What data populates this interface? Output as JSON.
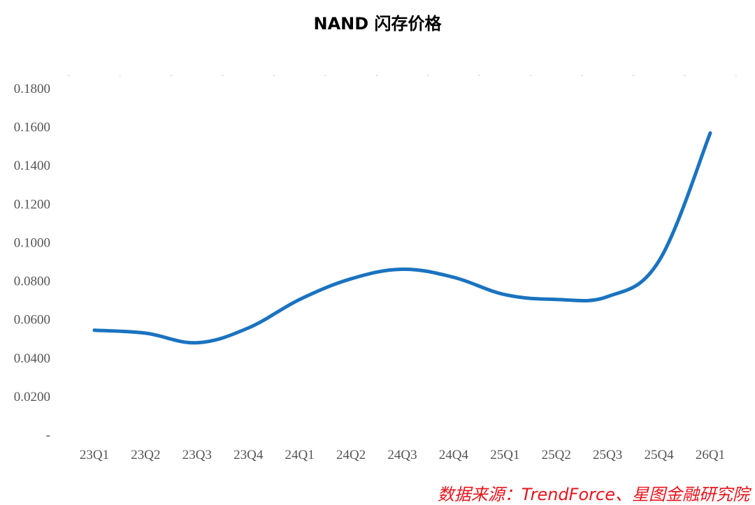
{
  "chart_data": {
    "type": "line",
    "title": "NAND 闪存价格",
    "categories": [
      "23Q1",
      "23Q2",
      "23Q3",
      "23Q4",
      "24Q1",
      "24Q2",
      "24Q3",
      "24Q4",
      "25Q1",
      "25Q2",
      "25Q3",
      "25Q4",
      "26Q1"
    ],
    "series": [
      {
        "values": [
          0.0545,
          0.053,
          0.048,
          0.0557,
          0.0705,
          0.0812,
          0.0862,
          0.082,
          0.073,
          0.0705,
          0.072,
          0.0905,
          0.157
        ],
        "color": "#1a73c0"
      }
    ],
    "ylim": [
      0,
      0.18
    ],
    "yticks": [
      {
        "value": 0,
        "label": "-"
      },
      {
        "value": 0.02,
        "label": "0.0200"
      },
      {
        "value": 0.04,
        "label": "0.0400"
      },
      {
        "value": 0.06,
        "label": "0.0600"
      },
      {
        "value": 0.08,
        "label": "0.0800"
      },
      {
        "value": 0.1,
        "label": "0.1000"
      },
      {
        "value": 0.12,
        "label": "0.1200"
      },
      {
        "value": 0.14,
        "label": "0.1400"
      },
      {
        "value": 0.16,
        "label": "0.1600"
      },
      {
        "value": 0.18,
        "label": "0.1800"
      }
    ],
    "xlabel": "",
    "ylabel": "",
    "grid": false,
    "legend": "none"
  },
  "source": "数据来源：TrendForce、星图金融研究院"
}
